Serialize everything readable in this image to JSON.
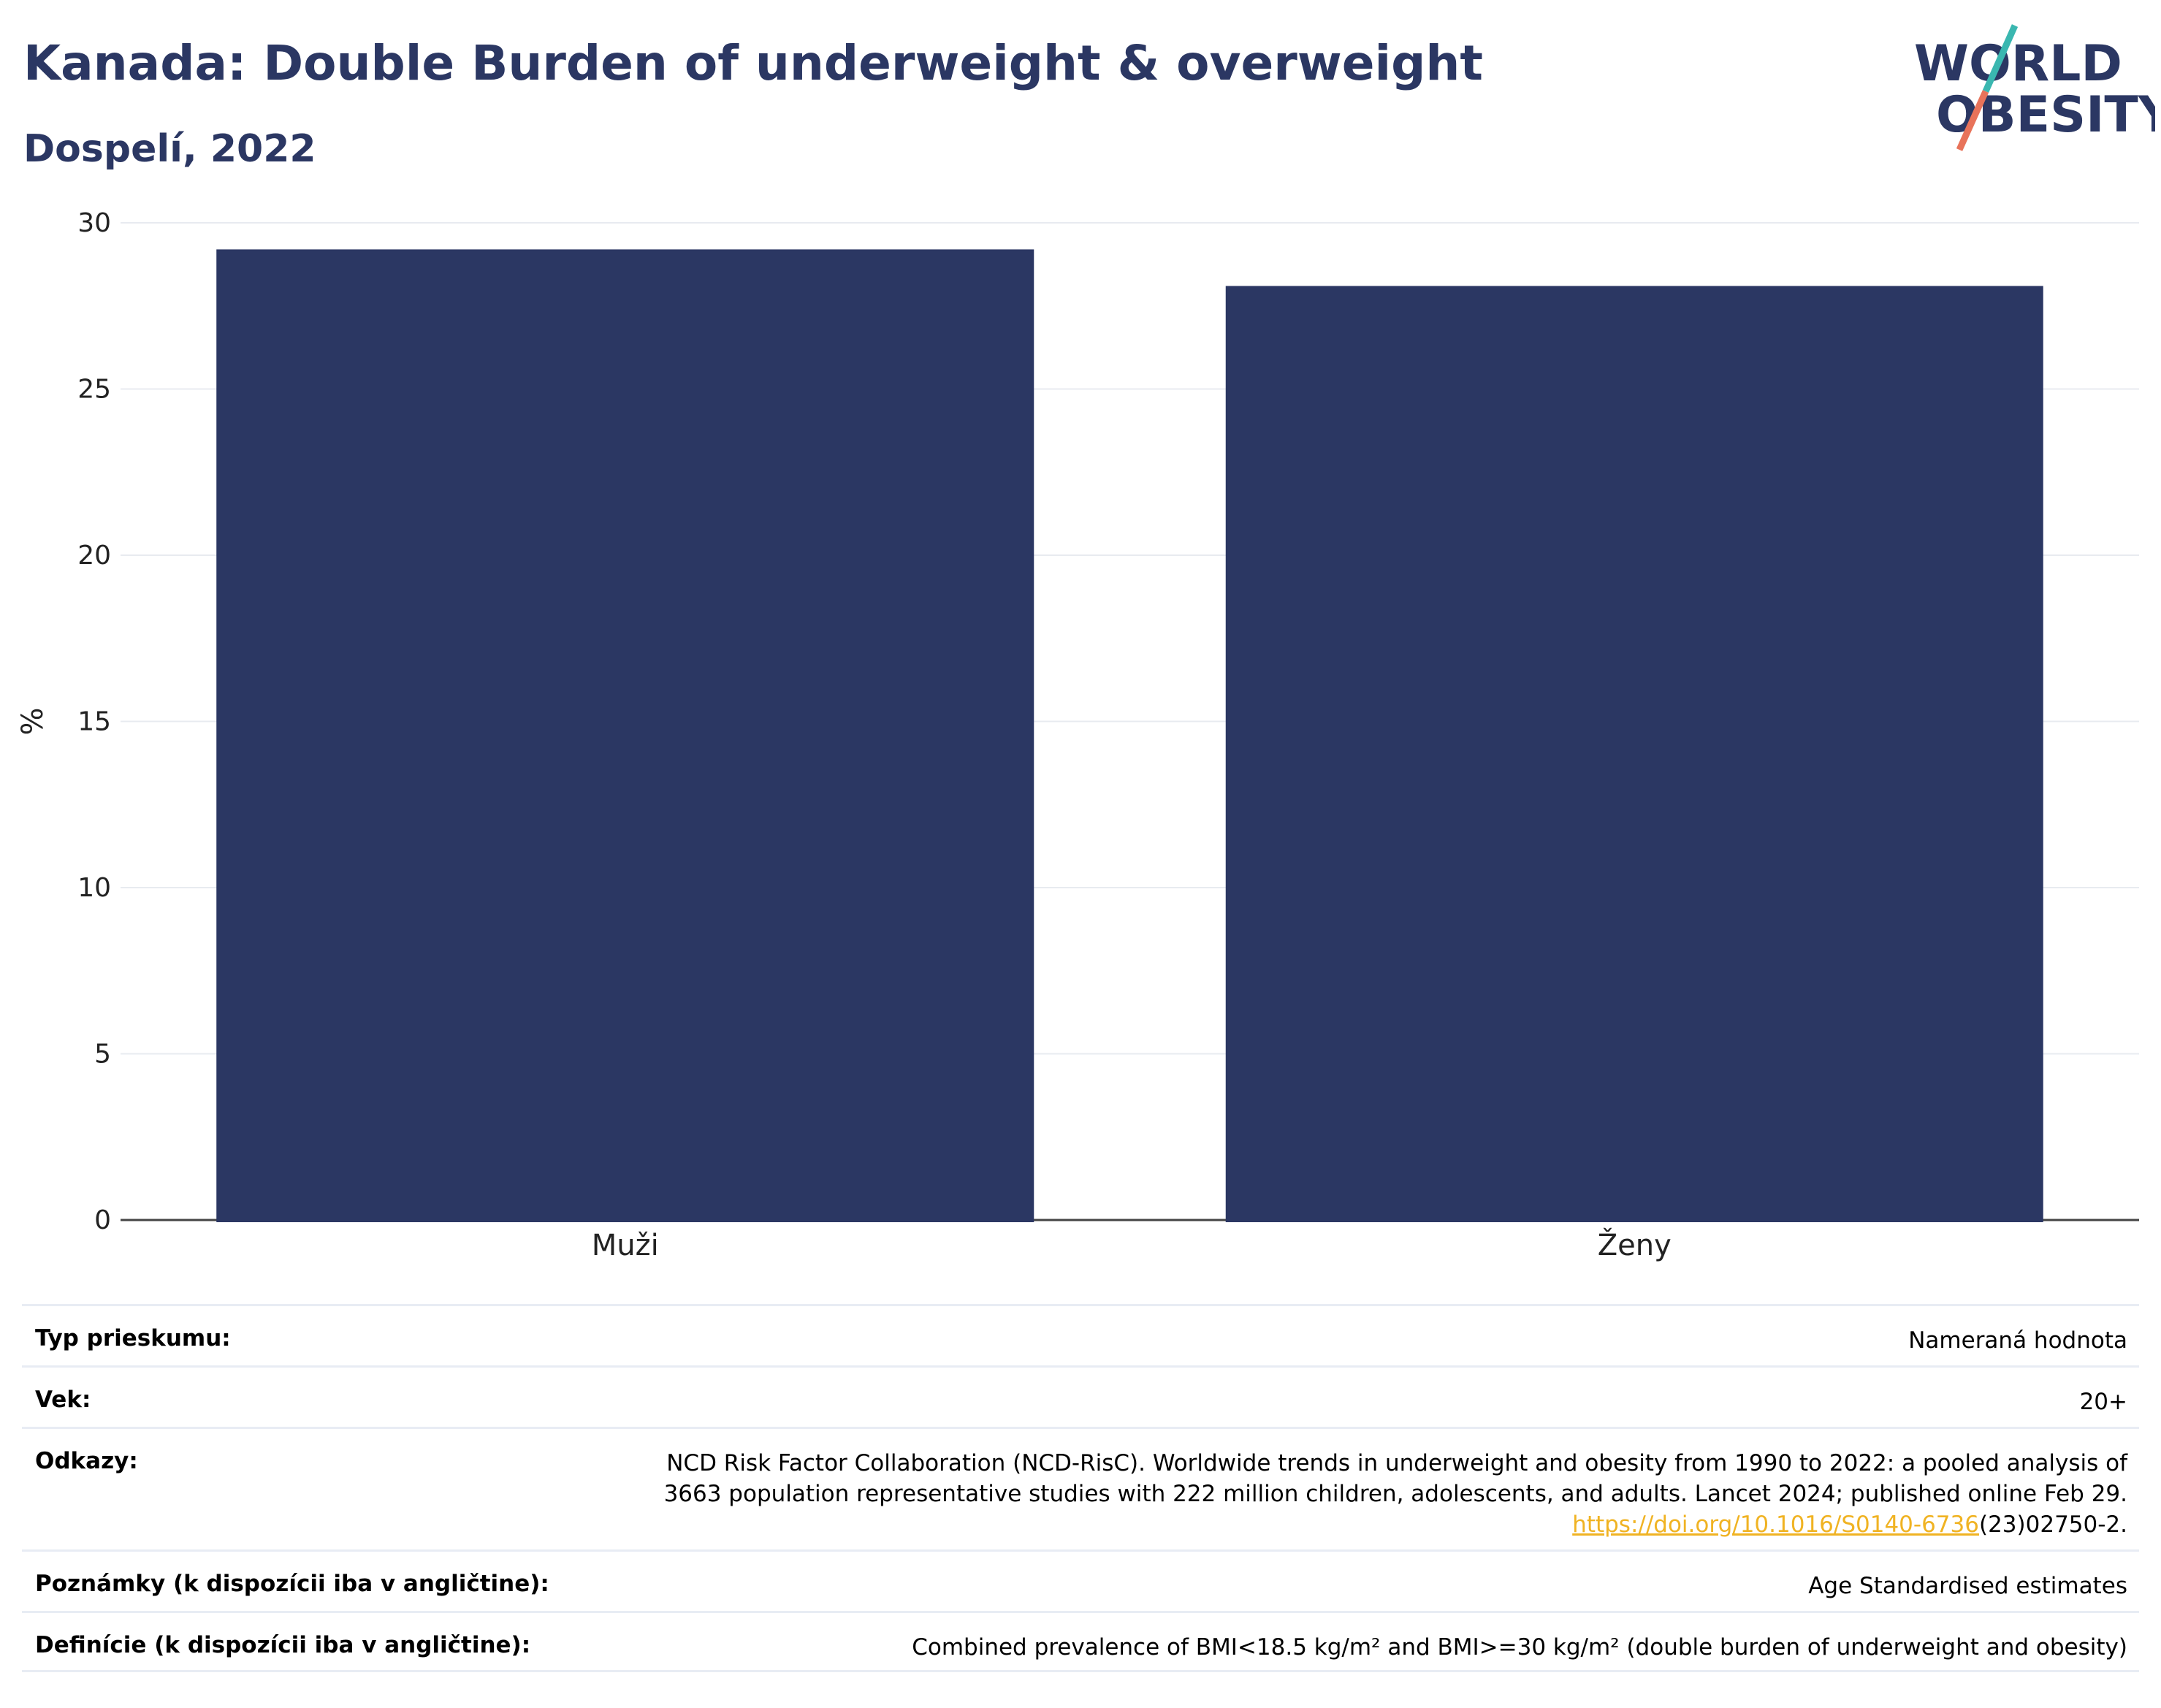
{
  "header": {
    "title": "Kanada: Double Burden of underweight & overweight",
    "subtitle": "Dospelí, 2022"
  },
  "logo": {
    "line1": "WORLD",
    "line2": "OBESITY",
    "colors": {
      "text": "#2b3763",
      "slash_top": "#3ab7b0",
      "slash_bottom": "#e8735a"
    }
  },
  "chart_data": {
    "type": "bar",
    "categories": [
      "Muži",
      "Ženy"
    ],
    "values": [
      29.2,
      28.1
    ],
    "ylabel": "%",
    "ylim": [
      0,
      30
    ],
    "yticks": [
      0,
      5,
      10,
      15,
      20,
      25,
      30
    ],
    "grid": true,
    "bar_color": "#2b3763"
  },
  "meta": {
    "rows": [
      {
        "label": "Typ prieskumu:",
        "value": "Nameraná hodnota"
      },
      {
        "label": "Vek:",
        "value": "20+"
      },
      {
        "label": "Odkazy:",
        "value_lines": [
          "NCD Risk Factor Collaboration (NCD-RisC). Worldwide trends in underweight and obesity from 1990 to 2022: a pooled analysis of",
          "3663 population representative studies with 222 million children, adolescents, and adults. Lancet 2024; published online Feb 29."
        ],
        "link_text": "https://doi.org/10.1016/S0140-6736",
        "link_suffix": "(23)02750-2."
      },
      {
        "label": "Poznámky (k dispozícii iba v angličtine):",
        "value": "Age Standardised estimates"
      },
      {
        "label": "Definície (k dispozícii iba v angličtine):",
        "value": "Combined prevalence of BMI<18.5 kg/m² and BMI>=30 kg/m² (double burden of underweight and obesity)"
      }
    ]
  }
}
